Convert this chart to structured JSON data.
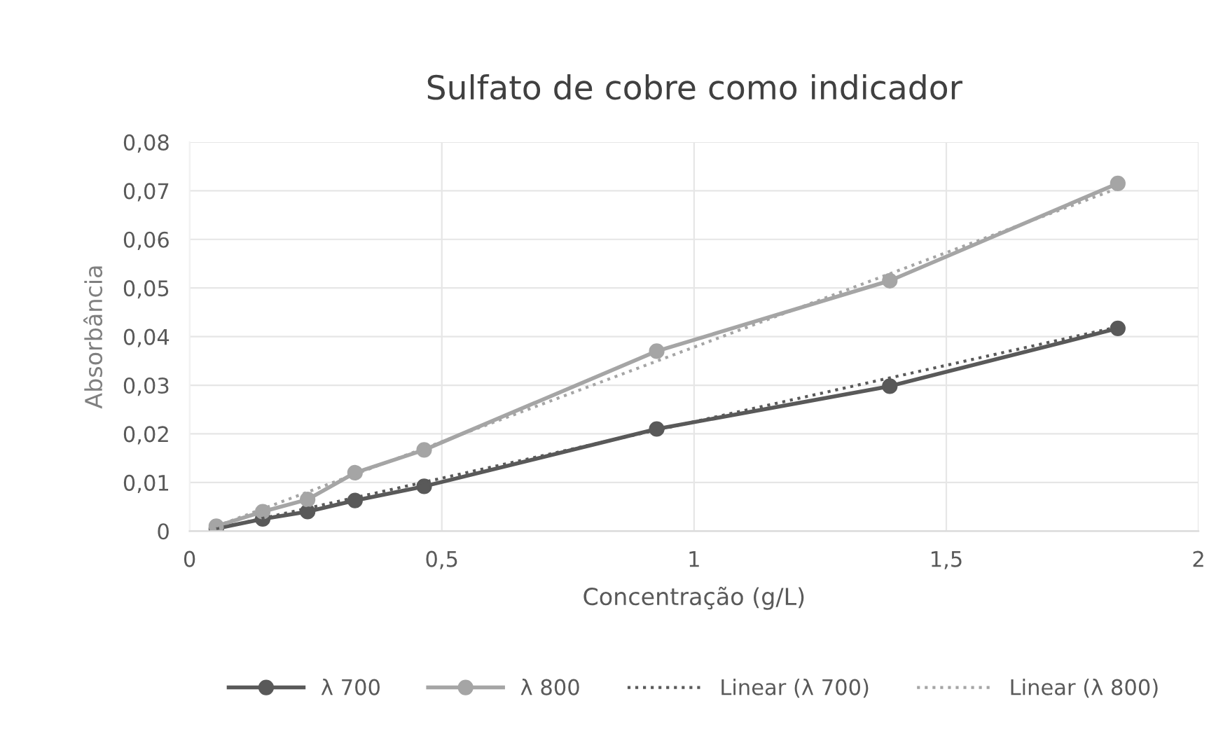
{
  "chart_data": {
    "type": "line",
    "title": "Sulfato de cobre como indicador",
    "xlabel": "Concentração (g/L)",
    "ylabel": "Absorbância",
    "xlim": [
      0,
      2
    ],
    "xticks": [
      {
        "value": 0,
        "label": "0"
      },
      {
        "value": 0.5,
        "label": "0,5"
      },
      {
        "value": 1,
        "label": "1"
      },
      {
        "value": 1.5,
        "label": "1,5"
      },
      {
        "value": 2,
        "label": "2"
      }
    ],
    "ylim": [
      0,
      0.08
    ],
    "yticks": [
      {
        "value": 0,
        "label": "0"
      },
      {
        "value": 0.01,
        "label": "0,01"
      },
      {
        "value": 0.02,
        "label": "0,02"
      },
      {
        "value": 0.03,
        "label": "0,03"
      },
      {
        "value": 0.04,
        "label": "0,04"
      },
      {
        "value": 0.05,
        "label": "0,05"
      },
      {
        "value": 0.06,
        "label": "0,06"
      },
      {
        "value": 0.07,
        "label": "0,07"
      },
      {
        "value": 0.08,
        "label": "0,08"
      }
    ],
    "grid": true,
    "legend": "bottom",
    "series": [
      {
        "name": "λ 700",
        "color": "#595959",
        "marker": "circle",
        "line_style": "solid",
        "x": [
          0.053,
          0.145,
          0.234,
          0.328,
          0.465,
          0.926,
          1.388,
          1.84
        ],
        "values": [
          0.0005,
          0.0025,
          0.004,
          0.0063,
          0.0092,
          0.021,
          0.0298,
          0.0417
        ]
      },
      {
        "name": "λ 800",
        "color": "#a5a5a5",
        "marker": "circle",
        "line_style": "solid",
        "x": [
          0.053,
          0.145,
          0.234,
          0.328,
          0.465,
          0.926,
          1.388,
          1.84
        ],
        "values": [
          0.001,
          0.004,
          0.0065,
          0.012,
          0.0167,
          0.037,
          0.0515,
          0.0715
        ]
      },
      {
        "name": "Linear (λ 700)",
        "color": "#595959",
        "marker": "none",
        "line_style": "dotted",
        "x": [
          0.053,
          1.84
        ],
        "values": [
          0.0005,
          0.042
        ]
      },
      {
        "name": "Linear (λ 800)",
        "color": "#a5a5a5",
        "marker": "none",
        "line_style": "dotted",
        "x": [
          0.053,
          1.84
        ],
        "values": [
          0.001,
          0.0705
        ]
      }
    ]
  }
}
